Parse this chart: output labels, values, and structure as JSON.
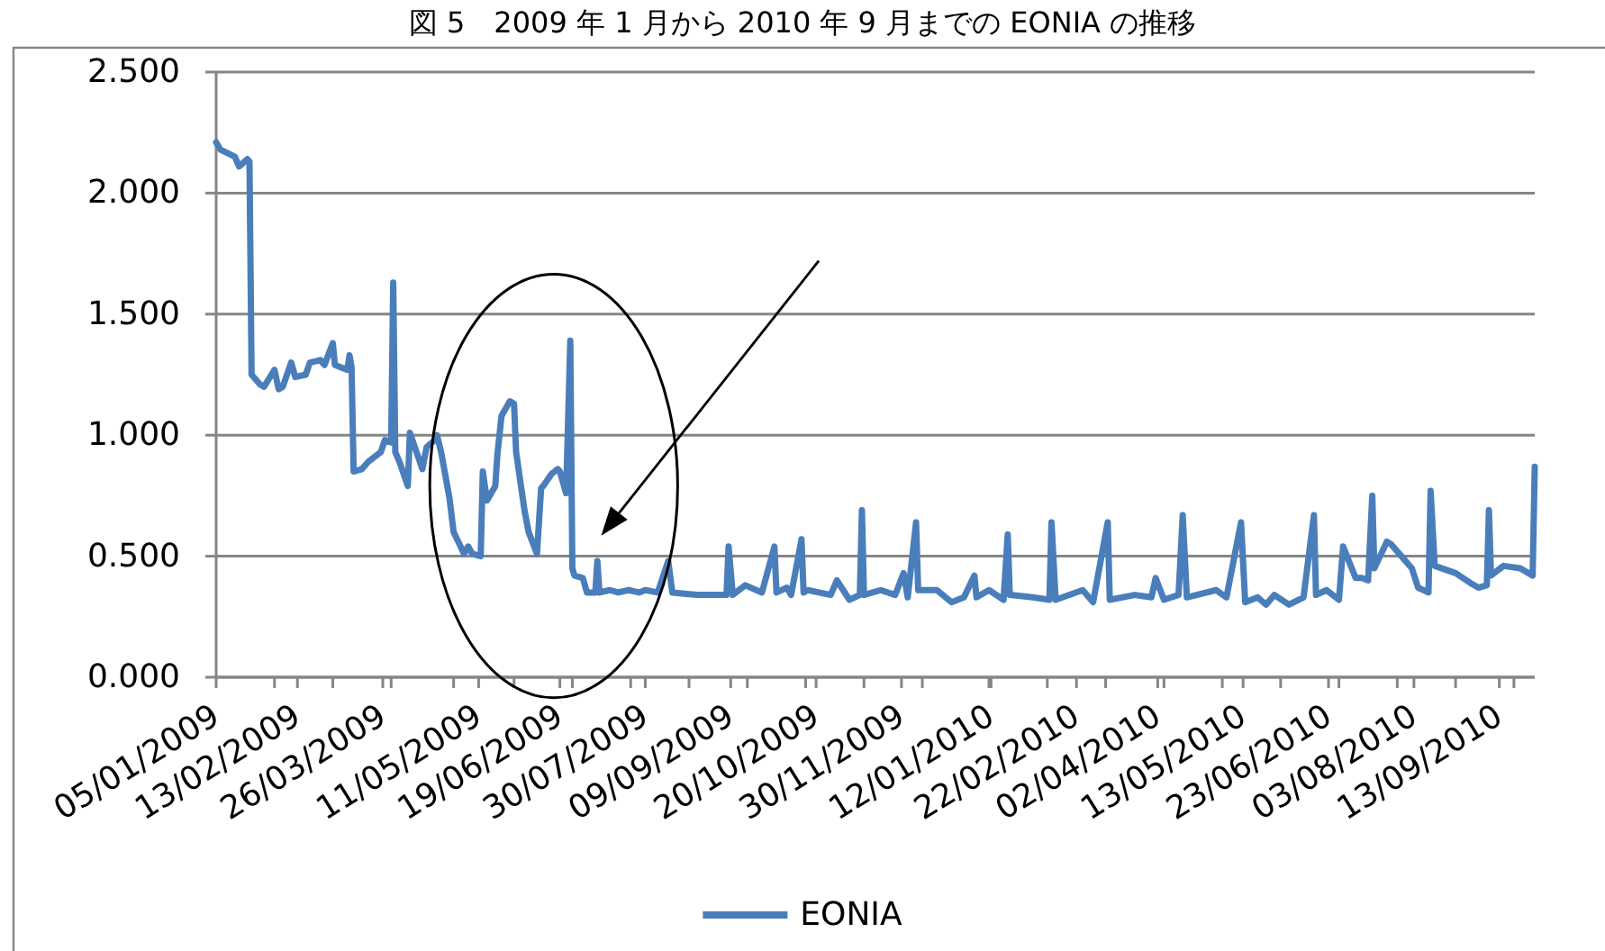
{
  "chart_data": {
    "type": "line",
    "title": "図 5　2009 年 1 月から 2010 年 9 月までの EONIA の推移",
    "x": [
      "2009-01-05",
      "2009-01-07",
      "2009-01-14",
      "2009-01-16",
      "2009-01-20",
      "2009-01-21",
      "2009-01-22",
      "2009-01-26",
      "2009-01-28",
      "2009-02-02",
      "2009-02-04",
      "2009-02-06",
      "2009-02-10",
      "2009-02-12",
      "2009-02-17",
      "2009-02-19",
      "2009-02-24",
      "2009-02-26",
      "2009-03-02",
      "2009-03-03",
      "2009-03-06",
      "2009-03-09",
      "2009-03-10",
      "2009-03-11",
      "2009-03-12",
      "2009-03-16",
      "2009-03-19",
      "2009-03-25",
      "2009-03-27",
      "2009-03-30",
      "2009-03-31",
      "2009-04-01",
      "2009-04-03",
      "2009-04-07",
      "2009-04-08",
      "2009-04-14",
      "2009-04-16",
      "2009-04-20",
      "2009-04-21",
      "2009-04-23",
      "2009-04-27",
      "2009-04-29",
      "2009-05-04",
      "2009-05-06",
      "2009-05-08",
      "2009-05-12",
      "2009-05-13",
      "2009-05-15",
      "2009-05-19",
      "2009-05-20",
      "2009-05-22",
      "2009-05-26",
      "2009-05-28",
      "2009-05-29",
      "2009-06-02",
      "2009-06-04",
      "2009-06-08",
      "2009-06-10",
      "2009-06-11",
      "2009-06-15",
      "2009-06-18",
      "2009-06-19",
      "2009-06-22",
      "2009-06-24",
      "2009-06-25",
      "2009-06-26",
      "2009-06-30",
      "2009-07-02",
      "2009-07-06",
      "2009-07-07",
      "2009-07-08",
      "2009-07-13",
      "2009-07-17",
      "2009-07-22",
      "2009-07-27",
      "2009-07-30",
      "2009-08-05",
      "2009-08-10",
      "2009-08-12",
      "2009-08-24",
      "2009-09-07",
      "2009-09-08",
      "2009-09-10",
      "2009-09-16",
      "2009-09-24",
      "2009-09-30",
      "2009-10-01",
      "2009-10-06",
      "2009-10-08",
      "2009-10-13",
      "2009-10-14",
      "2009-10-16",
      "2009-10-27",
      "2009-10-30",
      "2009-11-05",
      "2009-11-10",
      "2009-11-11",
      "2009-11-12",
      "2009-11-20",
      "2009-11-27",
      "2009-12-01",
      "2009-12-03",
      "2009-12-07",
      "2009-12-08",
      "2009-12-17",
      "2009-12-24",
      "2009-12-30",
      "2010-01-04",
      "2010-01-05",
      "2010-01-11",
      "2010-01-18",
      "2010-01-20",
      "2010-01-21",
      "2010-02-01",
      "2010-02-09",
      "2010-02-10",
      "2010-02-12",
      "2010-02-25",
      "2010-03-02",
      "2010-03-09",
      "2010-03-10",
      "2010-03-22",
      "2010-03-30",
      "2010-04-01",
      "2010-04-05",
      "2010-04-12",
      "2010-04-14",
      "2010-04-16",
      "2010-04-30",
      "2010-05-05",
      "2010-05-12",
      "2010-05-14",
      "2010-05-20",
      "2010-05-24",
      "2010-05-28",
      "2010-06-04",
      "2010-06-11",
      "2010-06-16",
      "2010-06-17",
      "2010-06-22",
      "2010-06-28",
      "2010-06-30",
      "2010-07-06",
      "2010-07-09",
      "2010-07-12",
      "2010-07-14",
      "2010-07-15",
      "2010-07-21",
      "2010-07-23",
      "2010-07-28",
      "2010-08-02",
      "2010-08-05",
      "2010-08-10",
      "2010-08-11",
      "2010-08-13",
      "2010-08-23",
      "2010-08-30",
      "2010-09-03",
      "2010-09-07",
      "2010-09-08",
      "2010-09-09",
      "2010-09-15",
      "2010-09-23",
      "2010-09-29",
      "2010-09-30"
    ],
    "series": [
      {
        "name": "EONIA",
        "color": "#4a7ebb",
        "values": [
          2.21,
          2.18,
          2.15,
          2.11,
          2.14,
          2.13,
          1.25,
          1.21,
          1.2,
          1.27,
          1.19,
          1.2,
          1.3,
          1.24,
          1.25,
          1.3,
          1.31,
          1.29,
          1.38,
          1.29,
          1.28,
          1.27,
          1.33,
          1.28,
          0.85,
          0.86,
          0.89,
          0.93,
          0.98,
          0.97,
          1.63,
          0.93,
          0.89,
          0.79,
          1.01,
          0.86,
          0.95,
          0.98,
          1.0,
          0.93,
          0.74,
          0.6,
          0.51,
          0.54,
          0.51,
          0.5,
          0.85,
          0.73,
          0.79,
          0.92,
          1.08,
          1.14,
          1.13,
          0.93,
          0.69,
          0.6,
          0.51,
          0.78,
          0.79,
          0.84,
          0.86,
          0.85,
          0.76,
          1.39,
          0.45,
          0.42,
          0.41,
          0.35,
          0.35,
          0.48,
          0.35,
          0.36,
          0.35,
          0.36,
          0.35,
          0.36,
          0.35,
          0.48,
          0.35,
          0.34,
          0.34,
          0.54,
          0.34,
          0.38,
          0.35,
          0.54,
          0.35,
          0.37,
          0.34,
          0.57,
          0.35,
          0.36,
          0.34,
          0.4,
          0.32,
          0.34,
          0.69,
          0.34,
          0.36,
          0.34,
          0.43,
          0.33,
          0.64,
          0.36,
          0.36,
          0.31,
          0.33,
          0.42,
          0.33,
          0.36,
          0.32,
          0.59,
          0.34,
          0.33,
          0.32,
          0.64,
          0.32,
          0.36,
          0.31,
          0.64,
          0.32,
          0.34,
          0.33,
          0.41,
          0.32,
          0.34,
          0.67,
          0.33,
          0.36,
          0.33,
          0.64,
          0.31,
          0.33,
          0.3,
          0.34,
          0.3,
          0.33,
          0.67,
          0.34,
          0.36,
          0.32,
          0.54,
          0.41,
          0.41,
          0.4,
          0.75,
          0.45,
          0.56,
          0.55,
          0.5,
          0.45,
          0.37,
          0.35,
          0.77,
          0.46,
          0.43,
          0.39,
          0.37,
          0.38,
          0.69,
          0.42,
          0.46,
          0.45,
          0.42,
          0.87
        ]
      }
    ],
    "xlim": [
      "2009-01-05",
      "2010-09-30"
    ],
    "xticks": [
      {
        "value": "2009-01-05",
        "label": "05/01/2009"
      },
      {
        "value": "2009-02-13",
        "label": "13/02/2009"
      },
      {
        "value": "2009-03-26",
        "label": "26/03/2009"
      },
      {
        "value": "2009-05-11",
        "label": "11/05/2009"
      },
      {
        "value": "2009-06-19",
        "label": "19/06/2009"
      },
      {
        "value": "2009-07-30",
        "label": "30/07/2009"
      },
      {
        "value": "2009-09-09",
        "label": "09/09/2009"
      },
      {
        "value": "2009-10-20",
        "label": "20/10/2009"
      },
      {
        "value": "2009-11-30",
        "label": "30/11/2009"
      },
      {
        "value": "2010-01-12",
        "label": "12/01/2010"
      },
      {
        "value": "2010-02-22",
        "label": "22/02/2010"
      },
      {
        "value": "2010-04-02",
        "label": "02/04/2010"
      },
      {
        "value": "2010-05-13",
        "label": "13/05/2010"
      },
      {
        "value": "2010-06-23",
        "label": "23/06/2010"
      },
      {
        "value": "2010-08-03",
        "label": "03/08/2010"
      },
      {
        "value": "2010-09-13",
        "label": "13/09/2010"
      },
      {
        "value": "2009-02-02",
        "label": null
      },
      {
        "value": "2009-03-02",
        "label": null
      },
      {
        "value": "2009-03-30",
        "label": null
      },
      {
        "value": "2009-04-29",
        "label": null
      },
      {
        "value": "2009-05-28",
        "label": null
      },
      {
        "value": "2009-06-25",
        "label": null
      },
      {
        "value": "2009-07-23",
        "label": null
      },
      {
        "value": "2009-08-20",
        "label": null
      },
      {
        "value": "2009-09-17",
        "label": null
      },
      {
        "value": "2009-10-15",
        "label": null
      },
      {
        "value": "2009-11-12",
        "label": null
      },
      {
        "value": "2009-12-10",
        "label": null
      },
      {
        "value": "2010-01-11",
        "label": null
      },
      {
        "value": "2010-02-08",
        "label": null
      },
      {
        "value": "2010-03-08",
        "label": null
      },
      {
        "value": "2010-04-05",
        "label": null
      },
      {
        "value": "2010-05-03",
        "label": null
      },
      {
        "value": "2010-05-31",
        "label": null
      },
      {
        "value": "2010-06-28",
        "label": null
      },
      {
        "value": "2010-07-26",
        "label": null
      },
      {
        "value": "2010-08-23",
        "label": null
      },
      {
        "value": "2010-09-20",
        "label": null
      }
    ],
    "ylim": [
      0,
      2.5
    ],
    "yticks": [
      {
        "value": 0,
        "label": "0.000"
      },
      {
        "value": 0.5,
        "label": "0.500"
      },
      {
        "value": 1,
        "label": "1.000"
      },
      {
        "value": 1.5,
        "label": "1.500"
      },
      {
        "value": 2,
        "label": "2.000"
      },
      {
        "value": 2.5,
        "label": "2.500"
      }
    ],
    "grid": "y",
    "legend": "bottom",
    "marker": "none",
    "line_style": "solid"
  }
}
